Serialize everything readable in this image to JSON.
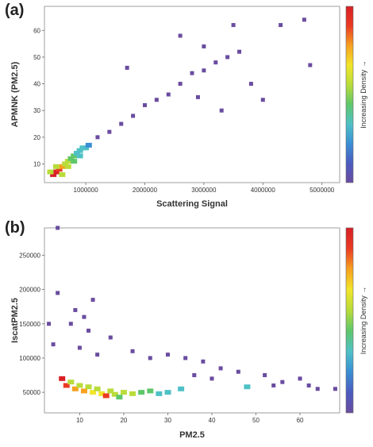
{
  "panels": [
    {
      "label": "(a)"
    },
    {
      "label": "(b)"
    }
  ],
  "colorbar": {
    "label": "Increasing Density →",
    "colors": [
      "#6a4ca0",
      "#4a5cc0",
      "#3a8fd4",
      "#4fc1c6",
      "#5fc76a",
      "#b9dc3a",
      "#f2e52a",
      "#f7a11f",
      "#ea3b23",
      "#d81f26"
    ]
  },
  "chart_data": [
    {
      "type": "heatmap",
      "title": "",
      "xlabel": "Scattering Signal",
      "ylabel": "APMNK (PM2.5)",
      "xlim": [
        300000,
        5300000
      ],
      "ylim": [
        3,
        69
      ],
      "xticks": [
        1000000,
        2000000,
        3000000,
        4000000,
        5000000
      ],
      "yticks": [
        10,
        20,
        30,
        40,
        50,
        60
      ],
      "xtick_labels": [
        "1000000",
        "2000000",
        "3000000",
        "4000000",
        "5000000"
      ],
      "ytick_labels": [
        "10",
        "20",
        "30",
        "40",
        "50",
        "60"
      ],
      "dense_cells": [
        [
          450000,
          6,
          1.0
        ],
        [
          500000,
          7,
          0.95
        ],
        [
          550000,
          8,
          0.85
        ],
        [
          600000,
          9,
          0.75
        ],
        [
          650000,
          10,
          0.6
        ],
        [
          700000,
          11,
          0.55
        ],
        [
          750000,
          12,
          0.45
        ],
        [
          800000,
          13,
          0.4
        ],
        [
          850000,
          14,
          0.35
        ],
        [
          900000,
          15,
          0.35
        ],
        [
          950000,
          16,
          0.3
        ],
        [
          1000000,
          16,
          0.3
        ],
        [
          1050000,
          17,
          0.25
        ],
        [
          400000,
          7,
          0.5
        ],
        [
          500000,
          9,
          0.6
        ],
        [
          700000,
          9,
          0.5
        ],
        [
          800000,
          11,
          0.4
        ],
        [
          900000,
          13,
          0.35
        ],
        [
          600000,
          6,
          0.5
        ]
      ],
      "sparse_cells": [
        [
          1200000,
          20
        ],
        [
          1400000,
          22
        ],
        [
          1600000,
          25
        ],
        [
          1800000,
          28
        ],
        [
          2000000,
          32
        ],
        [
          2200000,
          34
        ],
        [
          2400000,
          36
        ],
        [
          2600000,
          40
        ],
        [
          2800000,
          44
        ],
        [
          3000000,
          45
        ],
        [
          3200000,
          48
        ],
        [
          3400000,
          50
        ],
        [
          3600000,
          52
        ],
        [
          3800000,
          40
        ],
        [
          4000000,
          34
        ],
        [
          3500000,
          62
        ],
        [
          3000000,
          54
        ],
        [
          4800000,
          47
        ],
        [
          4700000,
          64
        ],
        [
          4300000,
          62
        ],
        [
          2600000,
          58
        ],
        [
          1700000,
          46
        ],
        [
          2900000,
          35
        ],
        [
          3300000,
          30
        ]
      ]
    },
    {
      "type": "heatmap",
      "title": "",
      "xlabel": "PM2.5",
      "ylabel": "IscatPM2.5",
      "xlim": [
        2,
        69
      ],
      "ylim": [
        20000,
        290000
      ],
      "xticks": [
        10,
        20,
        30,
        40,
        50,
        60
      ],
      "yticks": [
        50000,
        100000,
        150000,
        200000,
        250000
      ],
      "xtick_labels": [
        "10",
        "20",
        "30",
        "40",
        "50",
        "60"
      ],
      "ytick_labels": [
        "50000",
        "100000",
        "150000",
        "200000",
        "250000"
      ],
      "dense_cells": [
        [
          6,
          70000,
          1.0
        ],
        [
          7,
          60000,
          0.9
        ],
        [
          9,
          55000,
          0.8
        ],
        [
          11,
          52000,
          0.75
        ],
        [
          13,
          50000,
          0.7
        ],
        [
          15,
          48000,
          0.7
        ],
        [
          16,
          45000,
          0.9
        ],
        [
          18,
          47000,
          0.6
        ],
        [
          20,
          50000,
          0.55
        ],
        [
          22,
          48000,
          0.5
        ],
        [
          24,
          50000,
          0.45
        ],
        [
          26,
          52000,
          0.4
        ],
        [
          28,
          48000,
          0.35
        ],
        [
          8,
          65000,
          0.6
        ],
        [
          10,
          60000,
          0.6
        ],
        [
          12,
          58000,
          0.55
        ],
        [
          14,
          55000,
          0.5
        ],
        [
          17,
          52000,
          0.5
        ],
        [
          19,
          43000,
          0.45
        ],
        [
          30,
          50000,
          0.3
        ],
        [
          33,
          55000,
          0.3
        ],
        [
          48,
          58000,
          0.35
        ]
      ],
      "sparse_cells": [
        [
          5,
          290000
        ],
        [
          3,
          150000
        ],
        [
          4,
          120000
        ],
        [
          5,
          195000
        ],
        [
          13,
          185000
        ],
        [
          9,
          170000
        ],
        [
          11,
          160000
        ],
        [
          12,
          140000
        ],
        [
          8,
          150000
        ],
        [
          17,
          130000
        ],
        [
          10,
          115000
        ],
        [
          14,
          105000
        ],
        [
          22,
          110000
        ],
        [
          26,
          100000
        ],
        [
          30,
          105000
        ],
        [
          34,
          100000
        ],
        [
          38,
          95000
        ],
        [
          42,
          85000
        ],
        [
          46,
          80000
        ],
        [
          52,
          75000
        ],
        [
          56,
          65000
        ],
        [
          60,
          70000
        ],
        [
          64,
          55000
        ],
        [
          68,
          55000
        ],
        [
          62,
          60000
        ],
        [
          54,
          60000
        ],
        [
          40,
          70000
        ],
        [
          36,
          75000
        ]
      ]
    }
  ]
}
